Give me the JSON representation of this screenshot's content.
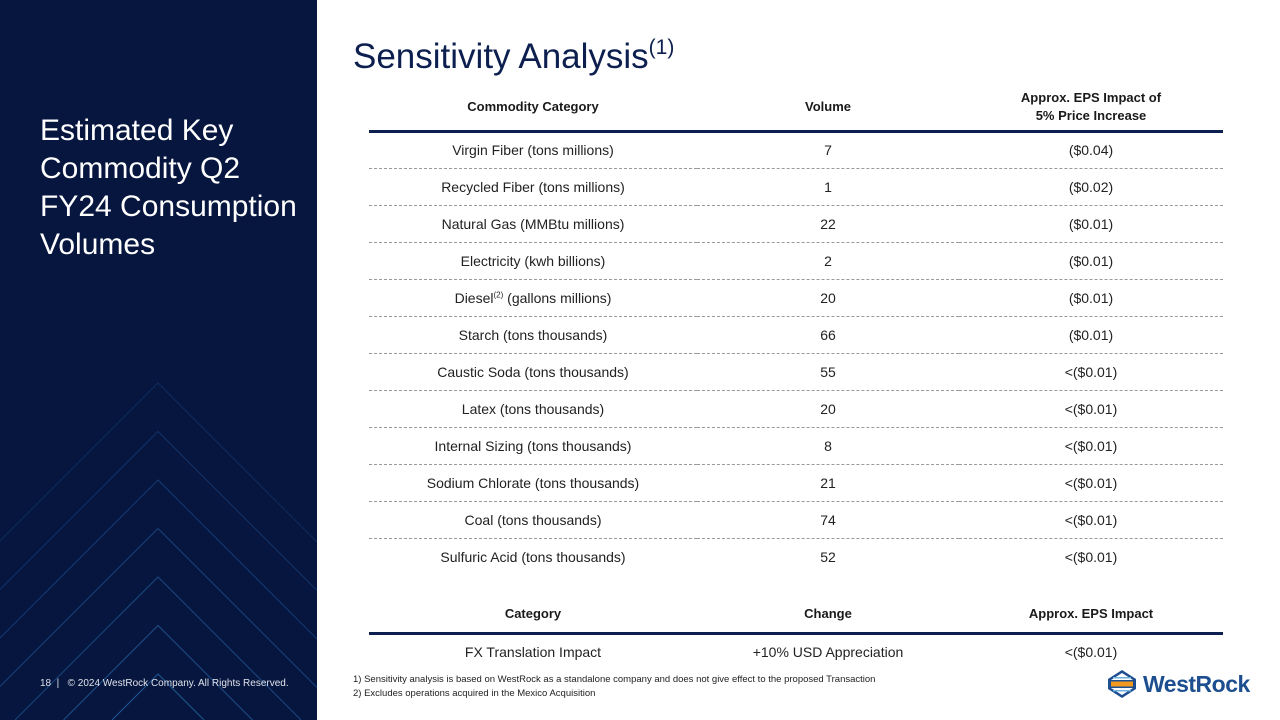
{
  "sidebar": {
    "title": "Estimated Key Commodity Q2 FY24 Consumption Volumes",
    "page_number": "18",
    "copyright": "© 2024 WestRock Company.  All Rights Reserved."
  },
  "header": {
    "title": "Sensitivity Analysis",
    "title_sup": "(1)"
  },
  "commodity_table": {
    "headers": [
      "Commodity  Category",
      "Volume",
      "Approx. EPS Impact of",
      "5% Price Increase"
    ],
    "rows": [
      {
        "category": "Virgin Fiber (tons millions)",
        "volume": "7",
        "impact": "($0.04)"
      },
      {
        "category": "Recycled Fiber (tons millions)",
        "volume": "1",
        "impact": "($0.02)"
      },
      {
        "category": "Natural Gas (MMBtu millions)",
        "volume": "22",
        "impact": "($0.01)"
      },
      {
        "category": "Electricity (kwh billions)",
        "volume": "2",
        "impact": "($0.01)"
      },
      {
        "category": "Diesel",
        "category_sup": "(2)",
        "category_suffix": " (gallons millions)",
        "volume": "20",
        "impact": "($0.01)"
      },
      {
        "category": "Starch (tons thousands)",
        "volume": "66",
        "impact": "($0.01)"
      },
      {
        "category": "Caustic Soda (tons thousands)",
        "volume": "55",
        "impact": "<($0.01)"
      },
      {
        "category": "Latex (tons thousands)",
        "volume": "20",
        "impact": "<($0.01)"
      },
      {
        "category": "Internal Sizing (tons thousands)",
        "volume": "8",
        "impact": "<($0.01)"
      },
      {
        "category": "Sodium Chlorate (tons thousands)",
        "volume": "21",
        "impact": "<($0.01)"
      },
      {
        "category": "Coal (tons thousands)",
        "volume": "74",
        "impact": "<($0.01)"
      },
      {
        "category": "Sulfuric Acid (tons thousands)",
        "volume": "52",
        "impact": "<($0.01)"
      }
    ]
  },
  "fx_table": {
    "headers": [
      "Category",
      "Change",
      "Approx. EPS Impact"
    ],
    "rows": [
      {
        "category": "FX Translation Impact",
        "change": "+10% USD Appreciation",
        "impact": "<($0.01)"
      }
    ]
  },
  "footnotes": [
    "1) Sensitivity analysis is based on WestRock as a standalone company and does not give effect to the proposed Transaction",
    "2) Excludes operations acquired in the Mexico Acquisition"
  ],
  "logo": {
    "text": "WestRock"
  },
  "colors": {
    "navy": "#07163f",
    "title": "#0c1f4f",
    "logo_blue": "#1d4e8f",
    "logo_orange": "#f39a1e"
  }
}
